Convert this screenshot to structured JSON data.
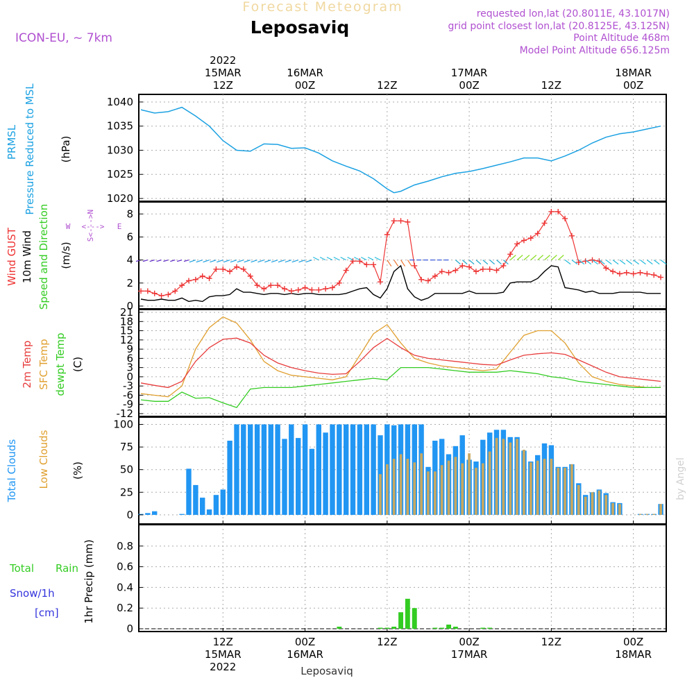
{
  "header": {
    "title": "Forecast Meteogram",
    "station": "Leposaviq",
    "model": "ICON-EU, ~ 7km",
    "requested": "requested lon,lat (20.8011E, 43.1017N)",
    "grid_point": "grid point closest lon,lat (20.8125E, 43.125N)",
    "point_altitude": "Point Altitude 468m",
    "model_altitude": "Model Point Altitude 656.125m",
    "footer": "Leposaviq",
    "watermark": "by Angel"
  },
  "time_axis": {
    "top_labels": [
      {
        "line1": "2022",
        "line2": "15MAR",
        "line3": "12Z"
      },
      {
        "line1": "",
        "line2": "16MAR",
        "line3": "00Z"
      },
      {
        "line1": "",
        "line2": "",
        "line3": "12Z"
      },
      {
        "line1": "",
        "line2": "17MAR",
        "line3": "00Z"
      },
      {
        "line1": "",
        "line2": "",
        "line3": "12Z"
      },
      {
        "line1": "",
        "line2": "18MAR",
        "line3": "00Z"
      }
    ],
    "bottom_labels": [
      {
        "line1": "12Z",
        "line2": "15MAR",
        "line3": "2022"
      },
      {
        "line1": "00Z",
        "line2": "16MAR",
        "line3": ""
      },
      {
        "line1": "12Z",
        "line2": "",
        "line3": ""
      },
      {
        "line1": "00Z",
        "line2": "17MAR",
        "line3": ""
      },
      {
        "line1": "12Z",
        "line2": "",
        "line3": ""
      },
      {
        "line1": "00Z",
        "line2": "18MAR",
        "line3": ""
      }
    ],
    "tick_hours": [
      12,
      24,
      36,
      48,
      60,
      72
    ]
  },
  "labels": {
    "pressure": {
      "a": "PRMSL",
      "b": "Pressure Reduced to MSL",
      "unit": "(hPa)"
    },
    "wind": {
      "a": "Wind GUST",
      "b": "10m Wind",
      "c": "Speed and Direction",
      "unit": "(m/s)",
      "compass_n": "N",
      "compass_s": "S",
      "compass_w": "W",
      "compass_e": "E",
      "compass_ns": "S<--->N",
      "compass_we": "<--->"
    },
    "temp": {
      "a": "2m Temp",
      "b": "SFC Temp",
      "c": "dewpt Temp",
      "unit": "(C)"
    },
    "clouds": {
      "a": "Total Clouds",
      "b": "Low Clouds",
      "unit": "(%)"
    },
    "precip": {
      "a": "Total",
      "b": "Rain",
      "c": "Snow/1h",
      "d": "[cm]",
      "unit": "1hr Precip (mm)"
    }
  },
  "colors": {
    "pressure": "#1ba1e2",
    "gust": "#ee3333",
    "wind": "#000000",
    "temp2m": "#e83c3c",
    "sfc": "#e0a030",
    "dew": "#33cc22",
    "total_cloud": "#2196f3",
    "low_cloud": "#c8a860",
    "rain": "#33cc22",
    "snow": "#3333dd",
    "purple": "#b050d0",
    "title_faded": "#f0d8a0"
  },
  "chart_data": [
    {
      "type": "line",
      "title": "PRMSL",
      "ylabel": "(hPa)",
      "ylim": [
        1020,
        1041
      ],
      "yticks": [
        1020,
        1025,
        1030,
        1035,
        1040
      ],
      "x_hours": [
        0,
        2,
        4,
        6,
        8,
        10,
        12,
        14,
        16,
        18,
        20,
        22,
        24,
        26,
        28,
        30,
        32,
        34,
        36,
        37,
        38,
        40,
        42,
        44,
        46,
        48,
        50,
        52,
        54,
        56,
        58,
        60,
        62,
        64,
        66,
        68,
        70,
        72,
        74,
        76
      ],
      "series": [
        {
          "values": [
            1038.4,
            1037.7,
            1038.0,
            1038.9,
            1037.1,
            1035.0,
            1032.0,
            1030.0,
            1029.8,
            1031.3,
            1031.2,
            1030.4,
            1030.5,
            1029.4,
            1027.8,
            1026.7,
            1025.7,
            1024.1,
            1022.0,
            1021.2,
            1021.5,
            1022.8,
            1023.6,
            1024.5,
            1025.2,
            1025.6,
            1026.2,
            1026.9,
            1027.6,
            1028.4,
            1028.4,
            1027.8,
            1028.8,
            1030.0,
            1031.5,
            1032.7,
            1033.4,
            1033.8,
            1034.4,
            1035.0
          ]
        }
      ]
    },
    {
      "type": "line",
      "title": "Wind",
      "ylabel": "(m/s)",
      "ylim": [
        0,
        8.8
      ],
      "yticks": [
        0,
        2,
        4,
        6,
        8
      ],
      "x_hours": [
        0,
        1,
        2,
        3,
        4,
        5,
        6,
        7,
        8,
        9,
        10,
        11,
        12,
        13,
        14,
        15,
        16,
        17,
        18,
        19,
        20,
        21,
        22,
        23,
        24,
        25,
        26,
        27,
        28,
        29,
        30,
        31,
        32,
        33,
        34,
        35,
        36,
        37,
        38,
        39,
        40,
        41,
        42,
        43,
        44,
        45,
        46,
        47,
        48,
        49,
        50,
        51,
        52,
        53,
        54,
        55,
        56,
        57,
        58,
        59,
        60,
        61,
        62,
        63,
        64,
        65,
        66,
        67,
        68,
        69,
        70,
        71,
        72,
        73,
        74,
        75,
        76
      ],
      "series": [
        {
          "name": "Wind GUST",
          "values": [
            1.3,
            1.3,
            1.1,
            0.9,
            1.0,
            1.3,
            1.8,
            2.2,
            2.3,
            2.6,
            2.4,
            3.2,
            3.2,
            3.0,
            3.4,
            3.2,
            2.6,
            1.8,
            1.5,
            1.8,
            1.8,
            1.5,
            1.3,
            1.4,
            1.6,
            1.4,
            1.4,
            1.5,
            1.6,
            2.0,
            3.1,
            3.9,
            3.9,
            3.6,
            3.6,
            2.1,
            6.2,
            7.4,
            7.4,
            7.3,
            3.5,
            2.3,
            2.2,
            2.6,
            3.0,
            2.9,
            3.1,
            3.5,
            3.4,
            3.0,
            3.2,
            3.2,
            3.1,
            3.5,
            4.5,
            5.4,
            5.7,
            5.9,
            6.3,
            7.2,
            8.2,
            8.2,
            7.6,
            6.1,
            3.8,
            3.9,
            4.0,
            3.9,
            3.3,
            3.0,
            2.8,
            2.9,
            2.8,
            2.9,
            2.8,
            2.7,
            2.5
          ]
        },
        {
          "name": "10m Wind",
          "values": [
            0.6,
            0.5,
            0.5,
            0.6,
            0.5,
            0.5,
            0.7,
            0.4,
            0.5,
            0.4,
            0.8,
            0.9,
            0.9,
            1.0,
            1.5,
            1.2,
            1.2,
            1.1,
            1.0,
            1.1,
            1.1,
            1.0,
            1.1,
            1.0,
            1.1,
            1.1,
            1.0,
            1.0,
            1.0,
            1.0,
            1.1,
            1.3,
            1.5,
            1.6,
            1.0,
            0.7,
            1.5,
            3.0,
            3.5,
            1.5,
            0.8,
            0.5,
            0.7,
            1.1,
            1.1,
            1.1,
            1.1,
            1.1,
            1.3,
            1.1,
            1.1,
            1.1,
            1.1,
            1.2,
            2.0,
            2.1,
            2.1,
            2.1,
            2.4,
            3.0,
            3.5,
            3.4,
            1.6,
            1.5,
            1.4,
            1.2,
            1.3,
            1.1,
            1.1,
            1.1,
            1.2,
            1.2,
            1.2,
            1.2,
            1.1,
            1.1,
            1.1
          ]
        }
      ]
    },
    {
      "type": "line",
      "title": "Temperature",
      "ylabel": "(C)",
      "ylim": [
        -12,
        21
      ],
      "yticks": [
        -12,
        -9,
        -6,
        -3,
        0,
        3,
        6,
        9,
        12,
        15,
        18,
        21
      ],
      "x_hours": [
        0,
        2,
        4,
        6,
        8,
        10,
        12,
        14,
        16,
        18,
        20,
        22,
        24,
        26,
        28,
        30,
        32,
        34,
        36,
        38,
        40,
        42,
        44,
        46,
        48,
        50,
        52,
        54,
        56,
        58,
        60,
        62,
        64,
        66,
        68,
        70,
        72,
        74,
        76
      ],
      "series": [
        {
          "name": "2m Temp",
          "values": [
            -2.0,
            -2.8,
            -3.5,
            -1.5,
            5.0,
            9.5,
            12.2,
            12.6,
            11.0,
            7.0,
            4.5,
            3.0,
            2.0,
            1.2,
            0.8,
            1.0,
            5.0,
            9.5,
            12.5,
            9.5,
            7.0,
            6.0,
            5.5,
            5.0,
            4.5,
            4.0,
            3.8,
            5.5,
            7.0,
            7.5,
            7.8,
            7.3,
            5.5,
            3.5,
            1.5,
            0.0,
            -0.5,
            -1.0,
            -1.5
          ]
        },
        {
          "name": "SFC Temp",
          "values": [
            -5.5,
            -6.0,
            -6.5,
            -3.0,
            9.0,
            16.0,
            19.5,
            17.5,
            12.0,
            5.0,
            2.0,
            0.5,
            0.0,
            -0.5,
            -1.0,
            0.0,
            7.0,
            14.0,
            17.0,
            11.0,
            6.0,
            4.5,
            3.5,
            3.0,
            2.5,
            2.0,
            2.5,
            8.0,
            13.5,
            15.0,
            15.0,
            11.0,
            4.5,
            0.0,
            -1.5,
            -2.5,
            -3.0,
            -3.5,
            -3.5
          ]
        },
        {
          "name": "dewpt Temp",
          "values": [
            -7.5,
            -8.0,
            -8.0,
            -5.0,
            -7.0,
            -6.8,
            -8.5,
            -10.0,
            -4.0,
            -3.5,
            -3.5,
            -3.5,
            -3.0,
            -2.5,
            -2.0,
            -1.5,
            -1.0,
            -0.5,
            -1.0,
            3.0,
            3.0,
            3.0,
            2.5,
            2.0,
            1.5,
            1.5,
            1.5,
            2.0,
            1.5,
            1.0,
            0.0,
            -0.5,
            -1.5,
            -2.0,
            -2.5,
            -3.0,
            -3.5,
            -3.5,
            -3.5
          ]
        }
      ]
    },
    {
      "type": "bar",
      "title": "Clouds",
      "ylabel": "(%)",
      "ylim": [
        -7,
        105
      ],
      "yticks": [
        0,
        25,
        50,
        75,
        100
      ],
      "series": [
        {
          "name": "Total Clouds",
          "values": [
            1,
            2,
            4,
            0,
            0,
            0,
            1,
            51,
            33,
            19,
            6,
            22,
            28,
            82,
            100,
            100,
            100,
            100,
            100,
            100,
            100,
            84,
            100,
            85,
            100,
            73,
            100,
            91,
            100,
            100,
            100,
            100,
            100,
            100,
            100,
            88,
            100,
            99,
            100,
            100,
            100,
            100,
            53,
            82,
            84,
            67,
            76,
            88,
            61,
            59,
            83,
            91,
            94,
            94,
            86,
            86,
            71,
            59,
            66,
            79,
            77,
            53,
            53,
            56,
            35,
            22,
            25,
            28,
            24,
            14,
            13,
            0,
            0,
            1,
            1,
            1,
            12
          ]
        },
        {
          "name": "Low Clouds",
          "values": [
            0,
            0,
            0,
            0,
            0,
            0,
            0,
            0,
            0,
            0,
            0,
            0,
            0,
            0,
            0,
            0,
            0,
            0,
            0,
            0,
            0,
            0,
            0,
            0,
            0,
            0,
            0,
            0,
            0,
            0,
            0,
            0,
            0,
            0,
            0,
            45,
            56,
            62,
            67,
            62,
            58,
            68,
            48,
            48,
            55,
            60,
            64,
            57,
            68,
            52,
            57,
            70,
            85,
            84,
            80,
            84,
            72,
            58,
            60,
            62,
            62,
            52,
            52,
            56,
            33,
            20,
            25,
            27,
            22,
            13,
            12,
            0,
            0,
            1,
            1,
            1,
            12
          ]
        }
      ]
    },
    {
      "type": "bar",
      "title": "1hr Precip",
      "ylabel": "1hr Precip (mm)",
      "ylim": [
        0,
        0.98
      ],
      "yticks": [
        0,
        0.2,
        0.4,
        0.6,
        0.8
      ],
      "series": [
        {
          "name": "Total Rain",
          "values": [
            0,
            0,
            0,
            0,
            0,
            0,
            0,
            0,
            0,
            0,
            0,
            0,
            0,
            0,
            0,
            0,
            0,
            0,
            0,
            0,
            0,
            0,
            0,
            0,
            0,
            0,
            0,
            0,
            0,
            0.02,
            0,
            0,
            0,
            0,
            0,
            0.01,
            0.01,
            0.02,
            0.16,
            0.29,
            0.2,
            0,
            0,
            0.01,
            0.01,
            0.04,
            0.02,
            0,
            0,
            0,
            0.01,
            0.01,
            0,
            0,
            0,
            0,
            0,
            0,
            0,
            0,
            0,
            0,
            0,
            0,
            0,
            0,
            0,
            0,
            0,
            0,
            0,
            0,
            0,
            0,
            0,
            0,
            0
          ]
        },
        {
          "name": "Snow/1h",
          "values": [
            0,
            0,
            0,
            0,
            0,
            0,
            0,
            0,
            0,
            0,
            0,
            0,
            0,
            0,
            0,
            0,
            0,
            0,
            0,
            0,
            0,
            0,
            0,
            0,
            0,
            0,
            0,
            0,
            0,
            0,
            0,
            0,
            0,
            0,
            0,
            0,
            0,
            0,
            0,
            0,
            0,
            0,
            0,
            0,
            0,
            0,
            0,
            0,
            0,
            0,
            0,
            0,
            0,
            0,
            0,
            0,
            0,
            0,
            0,
            0,
            0,
            0,
            0,
            0,
            0,
            0,
            0,
            0,
            0,
            0,
            0,
            0,
            0,
            0,
            0,
            0,
            0
          ]
        }
      ]
    }
  ]
}
